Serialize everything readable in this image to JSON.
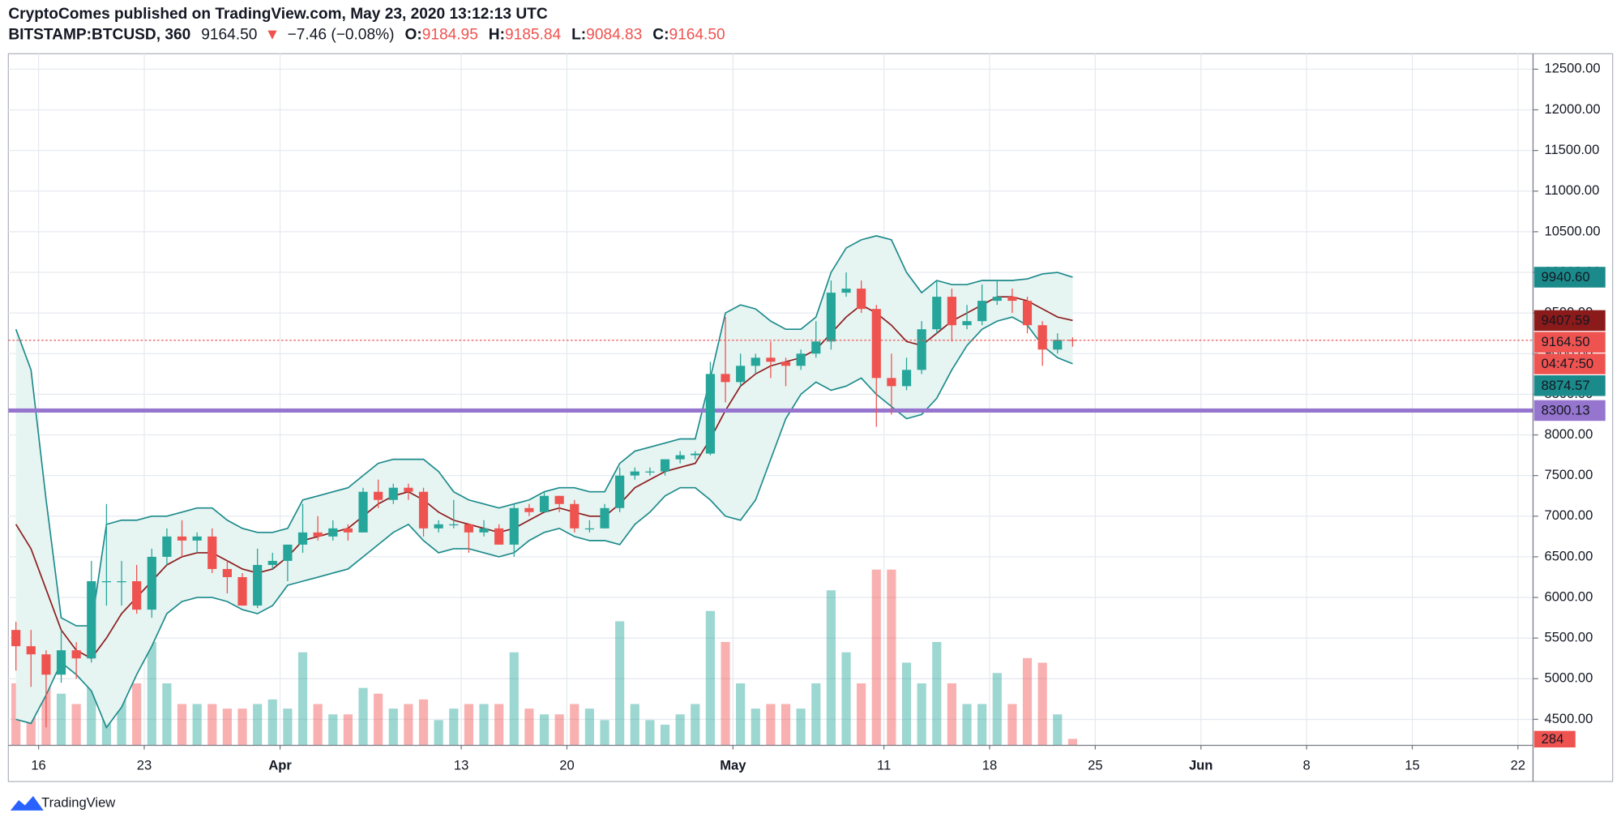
{
  "header": {
    "title": "CryptoComes published on TradingView.com, May 23, 2020 13:12:13 UTC",
    "symbol": "BITSTAMP:BTCUSD, 360",
    "price": "9164.50",
    "change_arrow": "▼",
    "change": "−7.46 (−0.08%)",
    "ohlc": [
      {
        "label": "O:",
        "value": "9184.95"
      },
      {
        "label": "H:",
        "value": "9185.84"
      },
      {
        "label": "L:",
        "value": "9084.83"
      },
      {
        "label": "C:",
        "value": "9164.50"
      }
    ]
  },
  "footer": {
    "brand": "TradingView"
  },
  "chart_data": {
    "type": "candlestick",
    "x": [
      "Mar 14",
      "Mar 15",
      "Mar 16",
      "Mar 17",
      "Mar 18",
      "Mar 19",
      "Mar 20",
      "Mar 21",
      "Mar 22",
      "Mar 23",
      "Mar 24",
      "Mar 25",
      "Mar 26",
      "Mar 27",
      "Mar 28",
      "Mar 29",
      "Mar 30",
      "Mar 31",
      "Apr 1",
      "Apr 2",
      "Apr 3",
      "Apr 4",
      "Apr 5",
      "Apr 6",
      "Apr 7",
      "Apr 8",
      "Apr 9",
      "Apr 10",
      "Apr 11",
      "Apr 12",
      "Apr 13",
      "Apr 14",
      "Apr 15",
      "Apr 16",
      "Apr 17",
      "Apr 18",
      "Apr 19",
      "Apr 20",
      "Apr 21",
      "Apr 22",
      "Apr 23",
      "Apr 24",
      "Apr 25",
      "Apr 26",
      "Apr 27",
      "Apr 28",
      "Apr 29",
      "Apr 30",
      "May 1",
      "May 2",
      "May 3",
      "May 4",
      "May 5",
      "May 6",
      "May 7",
      "May 8",
      "May 9",
      "May 10",
      "May 11",
      "May 12",
      "May 13",
      "May 14",
      "May 15",
      "May 16",
      "May 17",
      "May 18",
      "May 19",
      "May 20",
      "May 21",
      "May 22",
      "May 23"
    ],
    "open": [
      5600,
      5400,
      5300,
      5050,
      5350,
      5250,
      6200,
      6200,
      6200,
      5850,
      6500,
      6750,
      6700,
      6750,
      6350,
      6250,
      5900,
      6400,
      6450,
      6650,
      6800,
      6750,
      6850,
      6800,
      7300,
      7200,
      7350,
      7300,
      6850,
      6900,
      6900,
      6800,
      6850,
      6650,
      7100,
      7050,
      7250,
      7150,
      6850,
      6850,
      7100,
      7500,
      7550,
      7550,
      7700,
      7750,
      7770,
      8750,
      8650,
      8850,
      8950,
      8900,
      8850,
      9000,
      9150,
      9750,
      9800,
      9550,
      8700,
      8600,
      8800,
      9300,
      9700,
      9350,
      9400,
      9650,
      9700,
      9650,
      9350,
      9050,
      9170
    ],
    "high": [
      5700,
      5600,
      5350,
      5600,
      5450,
      6450,
      7150,
      6450,
      6400,
      6600,
      6850,
      6950,
      6800,
      6850,
      6450,
      6300,
      6600,
      6550,
      6650,
      7150,
      7000,
      6950,
      6900,
      7350,
      7450,
      7400,
      7400,
      7350,
      6950,
      7200,
      6900,
      6950,
      6900,
      7150,
      7150,
      7300,
      7250,
      7200,
      6950,
      7150,
      7600,
      7600,
      7600,
      7700,
      7800,
      7800,
      8900,
      9450,
      9000,
      9000,
      9150,
      8950,
      9050,
      9400,
      9900,
      10000,
      9900,
      9600,
      9000,
      8950,
      9400,
      9900,
      9800,
      9600,
      9850,
      9900,
      9800,
      9700,
      9400,
      9250,
      9200
    ],
    "low": [
      5100,
      4900,
      4400,
      4950,
      5000,
      5200,
      5900,
      5900,
      5800,
      5750,
      6400,
      6500,
      6550,
      6300,
      6050,
      5900,
      5870,
      6350,
      6200,
      6550,
      6700,
      6700,
      6700,
      6800,
      7100,
      7150,
      7200,
      6750,
      6800,
      6850,
      6550,
      6750,
      6650,
      6500,
      7000,
      7050,
      7050,
      6800,
      6800,
      6850,
      7050,
      7450,
      7500,
      7500,
      7650,
      7700,
      7750,
      8400,
      8600,
      8750,
      8700,
      8600,
      8800,
      8950,
      9050,
      9700,
      9500,
      8100,
      8250,
      8550,
      8750,
      9250,
      9150,
      9300,
      9350,
      9600,
      9500,
      9250,
      8850,
      9000,
      9085
    ],
    "close": [
      5400,
      5300,
      5050,
      5350,
      5250,
      6200,
      6200,
      6200,
      5850,
      6500,
      6750,
      6700,
      6750,
      6350,
      6250,
      5900,
      6400,
      6450,
      6650,
      6800,
      6750,
      6850,
      6800,
      7300,
      7200,
      7350,
      7300,
      6850,
      6900,
      6900,
      6800,
      6850,
      6650,
      7100,
      7050,
      7250,
      7150,
      6850,
      6850,
      7100,
      7500,
      7550,
      7550,
      7700,
      7750,
      7770,
      8750,
      8650,
      8850,
      8950,
      8900,
      8850,
      9000,
      9150,
      9750,
      9800,
      9550,
      8700,
      8600,
      8800,
      9300,
      9700,
      9350,
      9400,
      9650,
      9700,
      9650,
      9350,
      9050,
      9170,
      9164.5
    ],
    "up_color": "#26a69a",
    "down_color": "#ef5350",
    "bands": {
      "color": "#1b8a8a",
      "fill": "#e6f4f2",
      "upper": [
        9300,
        8800,
        7200,
        5750,
        5650,
        5650,
        6900,
        6950,
        6950,
        7000,
        7000,
        7050,
        7100,
        7100,
        6950,
        6850,
        6800,
        6800,
        6850,
        7200,
        7250,
        7300,
        7350,
        7500,
        7650,
        7700,
        7700,
        7700,
        7550,
        7300,
        7200,
        7150,
        7100,
        7150,
        7200,
        7300,
        7350,
        7350,
        7300,
        7300,
        7650,
        7800,
        7850,
        7900,
        7950,
        7950,
        8700,
        9500,
        9600,
        9550,
        9400,
        9300,
        9300,
        9450,
        10000,
        10300,
        10400,
        10450,
        10400,
        10000,
        9750,
        9900,
        9850,
        9850,
        9900,
        9900,
        9900,
        9920,
        9980,
        10000,
        9940.6
      ],
      "lower": [
        4500,
        4450,
        4800,
        5200,
        5050,
        4850,
        4400,
        4650,
        5050,
        5400,
        5800,
        5950,
        6000,
        6000,
        5950,
        5850,
        5800,
        5900,
        6150,
        6200,
        6250,
        6300,
        6350,
        6500,
        6650,
        6800,
        6900,
        6700,
        6550,
        6600,
        6600,
        6550,
        6500,
        6550,
        6700,
        6800,
        6850,
        6750,
        6700,
        6700,
        6650,
        6900,
        7050,
        7250,
        7350,
        7350,
        7200,
        7000,
        6950,
        7200,
        7700,
        8200,
        8500,
        8650,
        8550,
        8600,
        8700,
        8500,
        8350,
        8200,
        8250,
        8450,
        8800,
        9100,
        9300,
        9400,
        9450,
        9350,
        9100,
        8950,
        8874.57
      ]
    },
    "basis": {
      "color": "#8b1a1a",
      "values": [
        6900,
        6600,
        6100,
        5600,
        5350,
        5250,
        5500,
        5800,
        6000,
        6200,
        6400,
        6500,
        6550,
        6550,
        6450,
        6350,
        6300,
        6350,
        6500,
        6700,
        6750,
        6800,
        6850,
        7000,
        7150,
        7250,
        7300,
        7200,
        7050,
        6950,
        6900,
        6850,
        6800,
        6850,
        6950,
        7050,
        7100,
        7050,
        7000,
        7000,
        7150,
        7350,
        7450,
        7550,
        7600,
        7650,
        7950,
        8300,
        8600,
        8750,
        8850,
        8900,
        8950,
        9050,
        9250,
        9450,
        9600,
        9500,
        9350,
        9150,
        9100,
        9250,
        9400,
        9500,
        9600,
        9700,
        9700,
        9650,
        9550,
        9450,
        9407.59
      ]
    },
    "volume": {
      "ylim": [
        0,
        9000
      ],
      "values": [
        2700,
        7000,
        4500,
        2250,
        1800,
        4050,
        3600,
        2700,
        2700,
        4500,
        2700,
        1800,
        1800,
        1800,
        1600,
        1600,
        1800,
        2000,
        1600,
        4050,
        1800,
        1350,
        1350,
        2500,
        2250,
        1600,
        1800,
        2000,
        1100,
        1600,
        1800,
        1800,
        1800,
        4050,
        1600,
        1350,
        1350,
        1800,
        1600,
        1100,
        5400,
        1800,
        1100,
        900,
        1350,
        1800,
        5850,
        4500,
        2700,
        1600,
        1800,
        1800,
        1600,
        2700,
        6750,
        4050,
        2700,
        7650,
        7650,
        3600,
        2700,
        4500,
        2700,
        1800,
        1800,
        3150,
        1800,
        3800,
        3600,
        1350,
        284
      ]
    },
    "levels": [
      {
        "value": 8300.13,
        "color": "#9575cd"
      }
    ],
    "price_labels": [
      {
        "value": 9940.6,
        "label": "9940.60",
        "color": "#1b8a8a"
      },
      {
        "value": 9407.59,
        "color": "#8b1a1a"
      },
      {
        "value": 9164.5,
        "label": "9164.50",
        "color": "#ef5350",
        "countdown": "04:47:50"
      },
      {
        "value": 8874.57,
        "color": "#1b8a8a"
      }
    ],
    "xlim": [
      "Mar 14",
      "Jun 22"
    ],
    "xticks": [
      {
        "value": "Mar 16",
        "label": "16"
      },
      {
        "value": "Mar 23",
        "label": "23"
      },
      {
        "value": "Apr 1",
        "label": "Apr"
      },
      {
        "value": "Apr 13",
        "label": "13"
      },
      {
        "value": "Apr 20",
        "label": "20"
      },
      {
        "value": "May 1",
        "label": "May"
      },
      {
        "value": "May 11",
        "label": "11"
      },
      {
        "value": "May 18",
        "label": "18"
      },
      {
        "value": "May 25",
        "label": "25"
      },
      {
        "value": "Jun 1",
        "label": "Jun"
      },
      {
        "value": "Jun 8",
        "label": "8"
      },
      {
        "value": "Jun 15",
        "label": "15"
      },
      {
        "value": "Jun 22",
        "label": "22"
      }
    ],
    "ylim": [
      4180,
      12690
    ],
    "yticks": [
      {
        "value": 4500,
        "label": "4500.00"
      },
      {
        "value": 5000,
        "label": "5000.00"
      },
      {
        "value": 5500,
        "label": "5500.00"
      },
      {
        "value": 6000,
        "label": "6000.00"
      },
      {
        "value": 6500,
        "label": "6500.00"
      },
      {
        "value": 7000,
        "label": "7000.00"
      },
      {
        "value": 7500,
        "label": "7500.00"
      },
      {
        "value": 8000,
        "label": "8000.00"
      },
      {
        "value": 8500,
        "label": "8500.00"
      },
      {
        "value": 9000,
        "label": "9000.00"
      },
      {
        "value": 9500,
        "label": "9500.00"
      },
      {
        "value": 10000,
        "label": "10000.00"
      },
      {
        "value": 10500,
        "label": "10500.00"
      },
      {
        "value": 11000,
        "label": "11000.00"
      },
      {
        "value": 11500,
        "label": "11500.00"
      },
      {
        "value": 12000,
        "label": "12000.00"
      },
      {
        "value": 12500,
        "label": "12500.00"
      }
    ],
    "grid": true
  }
}
